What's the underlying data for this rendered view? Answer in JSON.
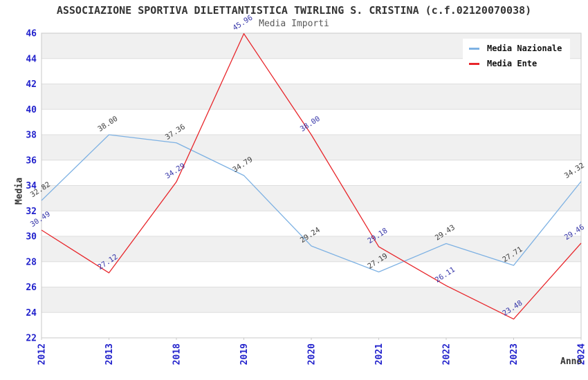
{
  "title": "ASSOCIAZIONE SPORTIVA DILETTANTISTICA TWIRLING S. CRISTINA (c.f.02120070038)",
  "subtitle": "Media Importi",
  "chart_data": {
    "type": "line",
    "x": [
      "2012",
      "2013",
      "2018",
      "2019",
      "2020",
      "2021",
      "2022",
      "2023",
      "2024"
    ],
    "xlabel": "Anno",
    "ylabel": "Media",
    "ylim": [
      22,
      46
    ],
    "ytick_step": 2,
    "grid": "horizontal-bands",
    "legend_position": "top-right",
    "series": [
      {
        "name": "Media Nazionale",
        "color": "#7db1e3",
        "label_color": "#3d3d3d",
        "values": [
          32.82,
          38.0,
          37.36,
          34.79,
          29.24,
          27.19,
          29.43,
          27.71,
          34.32
        ]
      },
      {
        "name": "Media Ente",
        "color": "#e8252a",
        "label_color": "#3535a8",
        "values": [
          30.49,
          27.12,
          34.29,
          45.96,
          38.0,
          29.18,
          26.11,
          23.48,
          29.46
        ]
      }
    ]
  },
  "colors": {
    "tick_label": "#2222cc",
    "band": "#f0f0f0",
    "grid": "#dedede",
    "axis": "#c9c9c9",
    "title": "#333333",
    "subtitle": "#595959",
    "legend_text": "#111111",
    "background": "#ffffff"
  }
}
